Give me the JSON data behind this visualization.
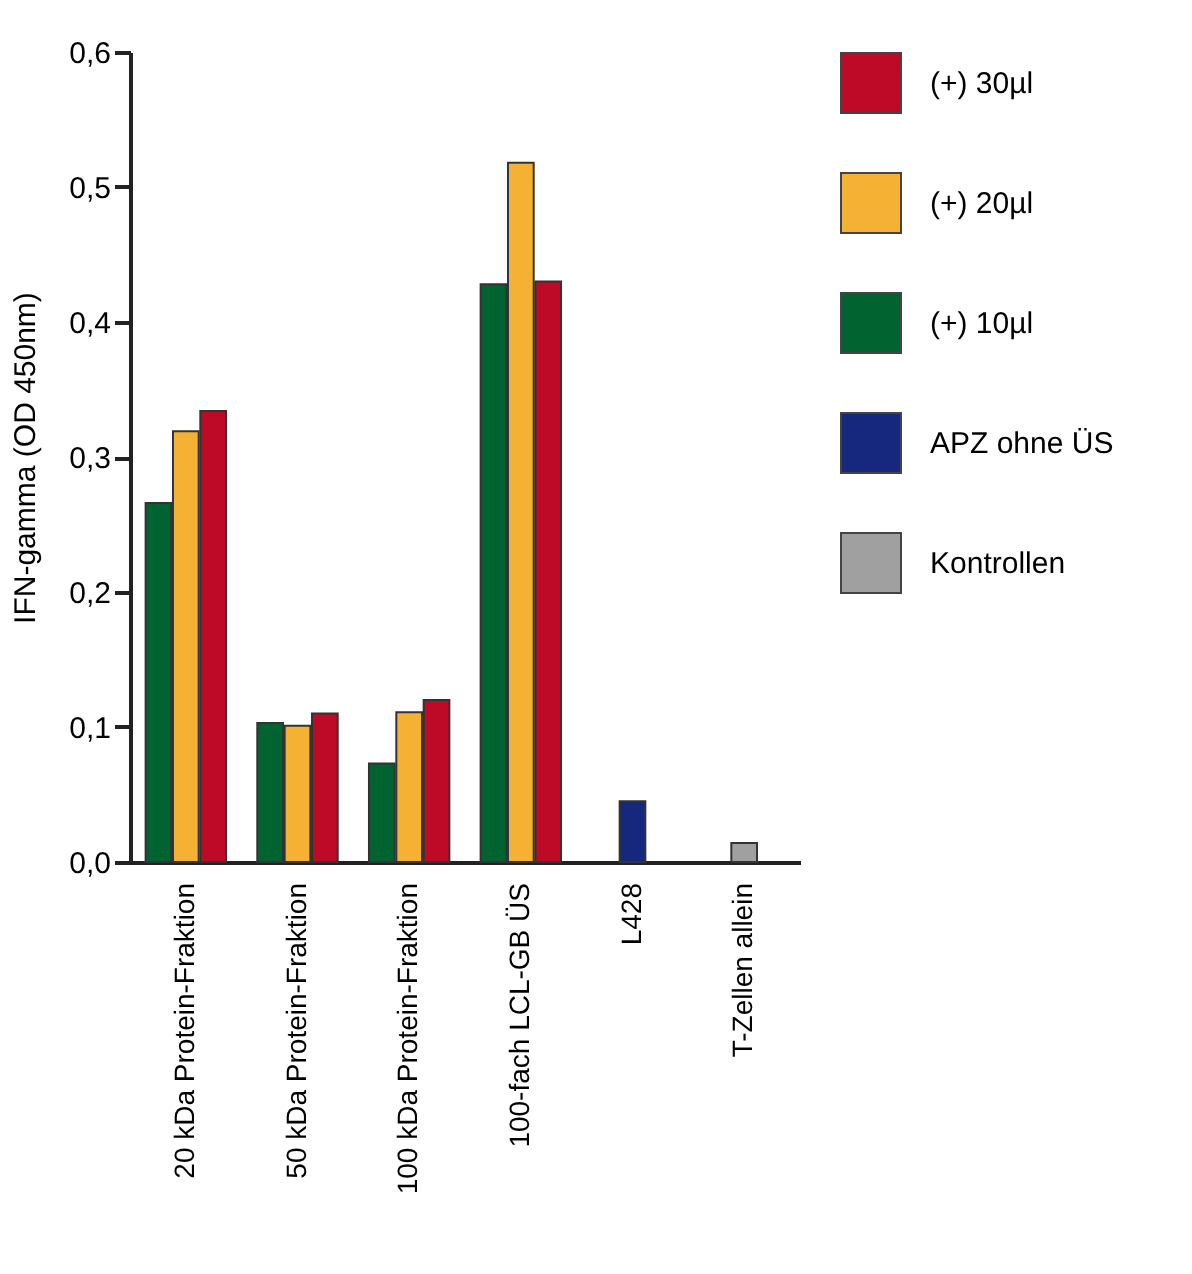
{
  "chart_data": {
    "type": "bar",
    "ylabel": "IFN-gamma (OD 450nm)",
    "categories": [
      "20 kDa Protein-Fraktion",
      "50 kDa Protein-Fraktion",
      "100 kDa Protein-Fraktion",
      "100-fach LCL-GB ÜS",
      "L428",
      "T-Zellen allein"
    ],
    "series": [
      {
        "name": "(+) 30µl",
        "color": "#be0a26",
        "values": [
          0.334,
          0.11,
          0.12,
          0.43,
          null,
          null
        ]
      },
      {
        "name": "(+) 20µl",
        "color": "#f5b134",
        "values": [
          0.319,
          0.101,
          0.111,
          0.518,
          null,
          null
        ]
      },
      {
        "name": "(+) 10µl",
        "color": "#006330",
        "values": [
          0.266,
          0.103,
          0.073,
          0.428,
          null,
          null
        ]
      },
      {
        "name": "APZ ohne ÜS",
        "color": "#15287e",
        "values": [
          null,
          null,
          null,
          null,
          0.045,
          null
        ]
      },
      {
        "name": "Kontrollen",
        "color": "#a0a0a0",
        "values": [
          null,
          null,
          null,
          null,
          null,
          0.014
        ]
      }
    ],
    "ylim": [
      0,
      0.6
    ],
    "yticks": [
      {
        "value": 0,
        "label": "0,0"
      },
      {
        "value": 0.1,
        "label": "0,1"
      },
      {
        "value": 0.2,
        "label": "0,2"
      },
      {
        "value": 0.3,
        "label": "0,3"
      },
      {
        "value": 0.4,
        "label": "0,4"
      },
      {
        "value": 0.5,
        "label": "0,5"
      },
      {
        "value": 0.6,
        "label": "0,6"
      }
    ],
    "grid": false,
    "legend": "top right"
  }
}
